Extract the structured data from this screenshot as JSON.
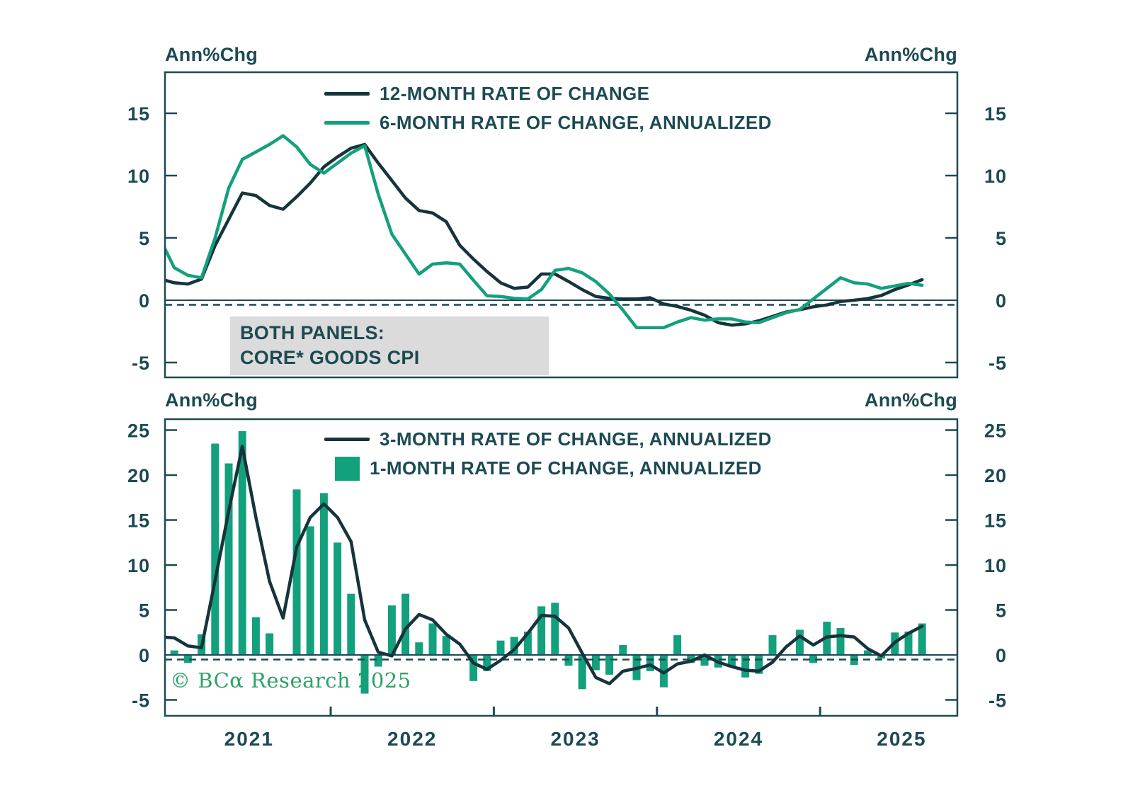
{
  "copyright": "© BCα Research 2025",
  "annotation": {
    "line1": "BOTH PANELS:",
    "line2": "CORE* GOODS CPI"
  },
  "palette": {
    "dark_line": "#16343C",
    "green": "#13A07D",
    "text": "#1C4A52",
    "axis": "#1C4A52",
    "note_box": "#DBDBDB",
    "copyright_green": "#2FA06A"
  },
  "chart_data": [
    {
      "type": "line",
      "panel": "top",
      "ylabel_left": "Ann%Chg",
      "ylabel_right": "Ann%Chg",
      "y_ticks": [
        15,
        10,
        5,
        0,
        -5
      ],
      "ylim": [
        -6.2,
        18.4
      ],
      "grid": false,
      "zero_line": "solid-plus-dashed",
      "legend_position": "top-center",
      "x_start": "2020-12",
      "x_end": "2025-08",
      "x_frequency": "monthly",
      "series": [
        {
          "name": "12-MONTH RATE OF CHANGE",
          "marker": "line",
          "color": "#16343C",
          "values": [
            1.7,
            1.4,
            1.3,
            1.7,
            4.4,
            6.5,
            8.6,
            8.4,
            7.6,
            7.3,
            8.3,
            9.4,
            10.7,
            11.5,
            12.2,
            12.5,
            11.0,
            9.6,
            8.2,
            7.2,
            7.0,
            6.3,
            4.4,
            3.3,
            2.3,
            1.4,
            0.95,
            1.05,
            2.1,
            2.1,
            1.5,
            0.85,
            0.3,
            0.15,
            0.1,
            0.1,
            0.2,
            -0.3,
            -0.5,
            -0.8,
            -1.2,
            -1.8,
            -2.0,
            -1.9,
            -1.65,
            -1.3,
            -0.95,
            -0.76,
            -0.53,
            -0.38,
            -0.1,
            0.0,
            0.13,
            0.38,
            0.85,
            1.23,
            1.65
          ]
        },
        {
          "name": "6-MONTH RATE OF CHANGE, ANNUALIZED",
          "marker": "line",
          "color": "#13A07D",
          "values": [
            4.8,
            2.6,
            2.0,
            1.8,
            5.0,
            9.0,
            11.3,
            11.9,
            12.5,
            13.2,
            12.3,
            10.9,
            10.2,
            11.0,
            11.8,
            12.4,
            8.5,
            5.3,
            3.7,
            2.1,
            2.9,
            3.0,
            2.9,
            1.6,
            0.35,
            0.3,
            0.15,
            0.1,
            0.85,
            2.4,
            2.55,
            2.2,
            1.5,
            0.5,
            -0.8,
            -2.2,
            -2.2,
            -2.2,
            -1.75,
            -1.4,
            -1.6,
            -1.5,
            -1.5,
            -1.75,
            -1.8,
            -1.4,
            -1.0,
            -0.75,
            0.1,
            0.95,
            1.8,
            1.4,
            1.3,
            0.95,
            1.15,
            1.35,
            1.2
          ]
        }
      ]
    },
    {
      "type": "bar+line",
      "panel": "bottom",
      "ylabel_left": "Ann%Chg",
      "ylabel_right": "Ann%Chg",
      "y_ticks": [
        25,
        20,
        15,
        10,
        5,
        0,
        -5
      ],
      "ylim": [
        -6.8,
        26.2
      ],
      "grid": false,
      "zero_line": "solid-plus-dashed",
      "legend_position": "top-center",
      "x_start": "2020-12",
      "x_end": "2025-08",
      "x_frequency": "monthly",
      "x_tick_labels": [
        "2021",
        "2022",
        "2023",
        "2024",
        "2025"
      ],
      "series": [
        {
          "name": "3-MONTH RATE OF CHANGE, ANNUALIZED",
          "marker": "line",
          "color": "#16343C",
          "values": [
            2.0,
            1.9,
            1.0,
            0.8,
            8.3,
            16.0,
            23.2,
            15.3,
            8.2,
            4.1,
            12.0,
            15.3,
            16.8,
            15.3,
            12.6,
            3.9,
            0.3,
            -0.1,
            2.9,
            4.5,
            3.9,
            2.3,
            1.2,
            -0.9,
            -1.6,
            -0.6,
            0.6,
            2.4,
            4.4,
            4.3,
            3.0,
            0.2,
            -2.5,
            -3.2,
            -1.8,
            -1.5,
            -1.1,
            -2.0,
            -1.0,
            -0.7,
            0.0,
            -0.8,
            -1.3,
            -1.7,
            -1.8,
            -0.8,
            0.9,
            2.1,
            1.1,
            2.0,
            2.15,
            2.0,
            0.7,
            -0.1,
            1.4,
            2.4,
            3.2
          ]
        },
        {
          "name": "1-MONTH RATE OF CHANGE, ANNUALIZED",
          "marker": "square",
          "color": "#13A07D",
          "values": [
            null,
            0.5,
            -0.9,
            2.3,
            23.5,
            21.3,
            24.9,
            4.2,
            2.4,
            0.0,
            18.4,
            14.3,
            18.0,
            12.5,
            6.8,
            -4.3,
            -1.3,
            5.5,
            6.8,
            1.4,
            3.5,
            2.1,
            0.0,
            -2.9,
            -1.8,
            1.6,
            2.0,
            2.6,
            5.4,
            5.8,
            -1.2,
            -3.8,
            -1.7,
            -2.2,
            1.1,
            -2.8,
            -1.8,
            -3.6,
            2.2,
            -0.9,
            -1.2,
            -1.4,
            -1.3,
            -2.5,
            -2.1,
            2.2,
            0.0,
            2.8,
            -0.9,
            3.7,
            3.0,
            -1.1,
            0.5,
            -0.4,
            2.5,
            2.6,
            3.5
          ]
        }
      ]
    }
  ]
}
